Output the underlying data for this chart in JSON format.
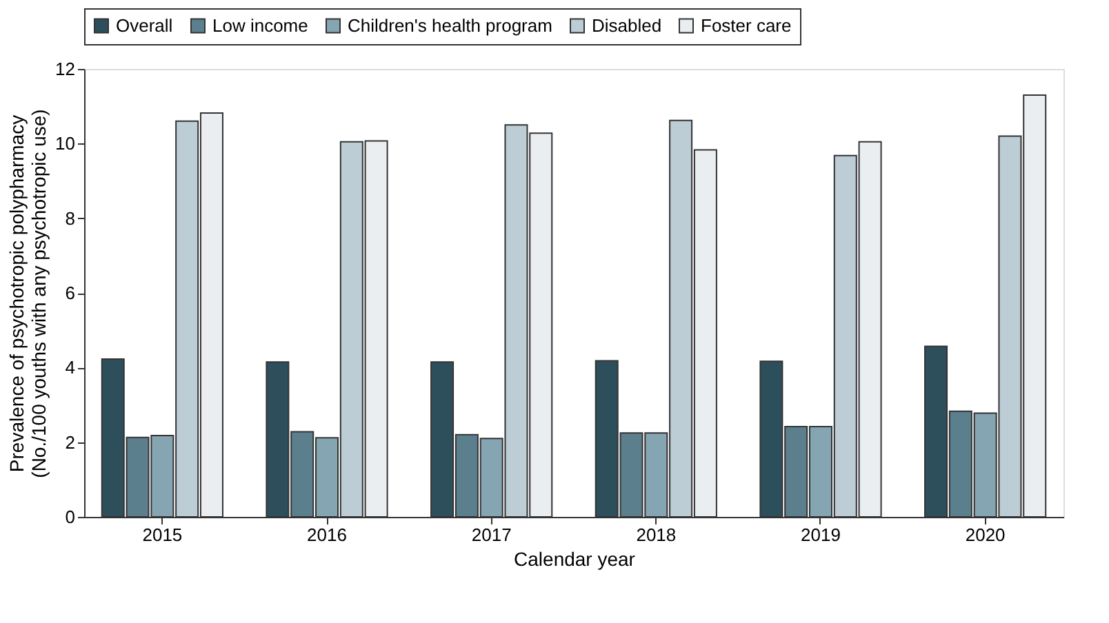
{
  "chart_data": {
    "type": "bar",
    "xlabel": "Calendar year",
    "ylabel": "Prevalence of psychotropic polypharmacy\n(No./100 youths with any psychotropic use)",
    "categories": [
      "2015",
      "2016",
      "2017",
      "2018",
      "2019",
      "2020"
    ],
    "series": [
      {
        "name": "Overall",
        "color": "#2d4f5c",
        "values": [
          4.23,
          4.15,
          4.15,
          4.18,
          4.17,
          4.57
        ]
      },
      {
        "name": "Low income",
        "color": "#5c7f8e",
        "values": [
          2.13,
          2.28,
          2.2,
          2.25,
          2.42,
          2.83
        ]
      },
      {
        "name": "Children's health program",
        "color": "#86a5b2",
        "values": [
          2.18,
          2.12,
          2.1,
          2.25,
          2.42,
          2.78
        ]
      },
      {
        "name": "Disabled",
        "color": "#bccdd5",
        "values": [
          10.6,
          10.05,
          10.5,
          10.62,
          9.68,
          10.2
        ]
      },
      {
        "name": "Foster care",
        "color": "#eaeef0",
        "values": [
          10.82,
          10.07,
          10.28,
          9.83,
          10.05,
          11.3
        ]
      }
    ],
    "ylim": [
      0,
      12
    ],
    "yticks": [
      0,
      2,
      4,
      6,
      8,
      10,
      12
    ],
    "grid": false,
    "legend": "top"
  }
}
